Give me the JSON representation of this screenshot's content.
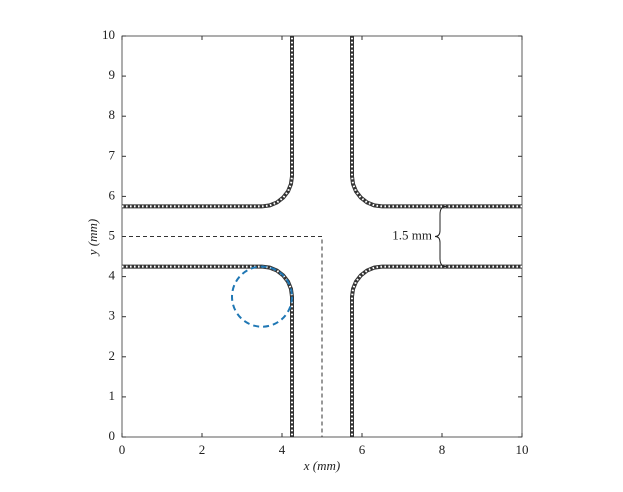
{
  "chart_data": {
    "type": "line",
    "xlabel": "x (mm)",
    "ylabel": "y (mm)",
    "xlim": [
      0,
      10
    ],
    "ylim": [
      0,
      10
    ],
    "xticks": [
      0,
      2,
      4,
      6,
      8,
      10
    ],
    "yticks": [
      0,
      1,
      2,
      3,
      4,
      5,
      6,
      7,
      8,
      9,
      10
    ],
    "series": [
      {
        "color": "#333333",
        "style": "beaded",
        "x": [
          0,
          3.5,
          3.694,
          3.875,
          4.03,
          4.15,
          4.224,
          4.25,
          4.25
        ],
        "y": [
          5.75,
          5.75,
          5.776,
          5.85,
          5.97,
          6.125,
          6.306,
          6.5,
          10
        ]
      },
      {
        "color": "#333333",
        "style": "beaded",
        "x": [
          10,
          6.5,
          6.306,
          6.125,
          5.97,
          5.85,
          5.776,
          5.75,
          5.75
        ],
        "y": [
          5.75,
          5.75,
          5.776,
          5.85,
          5.97,
          6.125,
          6.306,
          6.5,
          10
        ]
      },
      {
        "color": "#333333",
        "style": "beaded",
        "x": [
          0,
          3.5,
          3.694,
          3.875,
          4.03,
          4.15,
          4.224,
          4.25,
          4.25
        ],
        "y": [
          4.25,
          4.25,
          4.224,
          4.15,
          4.03,
          3.875,
          3.694,
          3.5,
          0
        ]
      },
      {
        "color": "#333333",
        "style": "beaded",
        "x": [
          10,
          6.5,
          6.306,
          6.125,
          5.97,
          5.85,
          5.776,
          5.75,
          5.75
        ],
        "y": [
          4.25,
          4.25,
          4.224,
          4.15,
          4.03,
          3.875,
          3.694,
          3.5,
          0
        ]
      },
      {
        "color": "#333333",
        "style": "dashed",
        "x": [
          0,
          5,
          5
        ],
        "y": [
          5,
          5,
          0
        ]
      }
    ],
    "circle": {
      "center": [
        3.5,
        3.5
      ],
      "radius": 0.75,
      "color": "#1f77b4",
      "style": "dashed"
    },
    "annotation": {
      "text": "1.5 mm",
      "x": 8.1,
      "y": [
        4.25,
        5.75
      ]
    }
  }
}
